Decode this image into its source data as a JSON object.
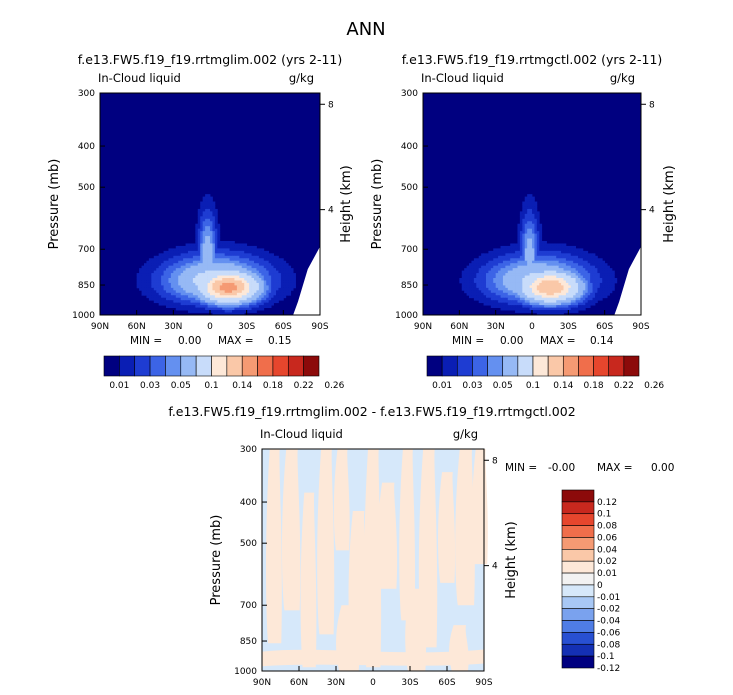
{
  "figure_title": "ANN",
  "chart_data": [
    {
      "type": "contour",
      "title": "f.e13.FW5.f19_f19.rrtmglim.002 (yrs 2-11)",
      "left_label": "In-Cloud liquid",
      "right_label": "g/kg",
      "ylabel": "Pressure (mb)",
      "y2label": "Height (km)",
      "pressure_ticks": [
        "300",
        "400",
        "500",
        "700",
        "850",
        "1000"
      ],
      "pressure_values": [
        300,
        400,
        500,
        700,
        850,
        1000
      ],
      "height_ticks": [
        "8",
        "4"
      ],
      "height_values": [
        8,
        4
      ],
      "x_ticks": [
        "90N",
        "60N",
        "30N",
        "0",
        "30S",
        "60S",
        "90S"
      ],
      "x_values": [
        90,
        60,
        30,
        0,
        -30,
        -60,
        -90
      ],
      "xlim": [
        90,
        -90
      ],
      "ylim": [
        300,
        1000
      ],
      "min_label": "MIN =",
      "min_value": "0.00",
      "max_label": "MAX =",
      "max_value": "0.15",
      "peak": {
        "lat": -15,
        "p": 860,
        "value": 0.15
      },
      "colorbar_ticks": [
        "0.01",
        "0.03",
        "0.05",
        "0.1",
        "0.14",
        "0.18",
        "0.22",
        "0.26"
      ]
    },
    {
      "type": "contour",
      "title": "f.e13.FW5.f19_f19.rrtmgctl.002 (yrs 2-11)",
      "left_label": "In-Cloud liquid",
      "right_label": "g/kg",
      "ylabel": "Pressure (mb)",
      "y2label": "Height (km)",
      "pressure_ticks": [
        "300",
        "400",
        "500",
        "700",
        "850",
        "1000"
      ],
      "pressure_values": [
        300,
        400,
        500,
        700,
        850,
        1000
      ],
      "height_ticks": [
        "8",
        "4"
      ],
      "height_values": [
        8,
        4
      ],
      "x_ticks": [
        "90N",
        "60N",
        "30N",
        "0",
        "30S",
        "60S",
        "90S"
      ],
      "x_values": [
        90,
        60,
        30,
        0,
        -30,
        -60,
        -90
      ],
      "xlim": [
        90,
        -90
      ],
      "ylim": [
        300,
        1000
      ],
      "min_label": "MIN =",
      "min_value": "0.00",
      "max_label": "MAX =",
      "max_value": "0.14",
      "peak": {
        "lat": -15,
        "p": 860,
        "value": 0.14
      },
      "colorbar_ticks": [
        "0.01",
        "0.03",
        "0.05",
        "0.1",
        "0.14",
        "0.18",
        "0.22",
        "0.26"
      ]
    },
    {
      "type": "contour",
      "title": "f.e13.FW5.f19_f19.rrtmglim.002 - f.e13.FW5.f19_f19.rrtmgctl.002",
      "left_label": "In-Cloud liquid",
      "right_label": "g/kg",
      "ylabel": "Pressure (mb)",
      "y2label": "Height (km)",
      "pressure_ticks": [
        "300",
        "400",
        "500",
        "700",
        "850",
        "1000"
      ],
      "pressure_values": [
        300,
        400,
        500,
        700,
        850,
        1000
      ],
      "height_ticks": [
        "8",
        "4"
      ],
      "height_values": [
        8,
        4
      ],
      "x_ticks": [
        "90N",
        "60N",
        "30N",
        "0",
        "30S",
        "60S",
        "90S"
      ],
      "x_values": [
        90,
        60,
        30,
        0,
        -30,
        -60,
        -90
      ],
      "xlim": [
        90,
        -90
      ],
      "ylim": [
        300,
        1000
      ],
      "min_label": "MIN =",
      "min_value": "-0.00",
      "max_label": "MAX =",
      "max_value": "0.00",
      "colorbar_ticks": [
        "0.12",
        "0.1",
        "0.08",
        "0.06",
        "0.04",
        "0.02",
        "0.01",
        "0",
        "-0.01",
        "-0.02",
        "-0.04",
        "-0.06",
        "-0.08",
        "-0.1",
        "-0.12"
      ]
    }
  ],
  "colors": {
    "abs_palette": [
      "#000080",
      "#0a1eb4",
      "#1e3cd2",
      "#3c64e6",
      "#6490f0",
      "#96b9f5",
      "#c8dcfa",
      "#fde8d8",
      "#fac8a8",
      "#f59a73",
      "#f06e4b",
      "#e6462d",
      "#c8281e",
      "#8c0a0a"
    ],
    "diff_palette_top_down": [
      "#8c0a0a",
      "#c8281e",
      "#e6462d",
      "#f06e4b",
      "#f59a73",
      "#fac8a8",
      "#fde8d8",
      "#f2f2f2",
      "#d6e8fa",
      "#a8c8f5",
      "#7aa2ee",
      "#4f7de6",
      "#2850d2",
      "#1430b4",
      "#000080"
    ],
    "diff_pos": "#fde8d8",
    "diff_neg": "#d6e8fa"
  }
}
